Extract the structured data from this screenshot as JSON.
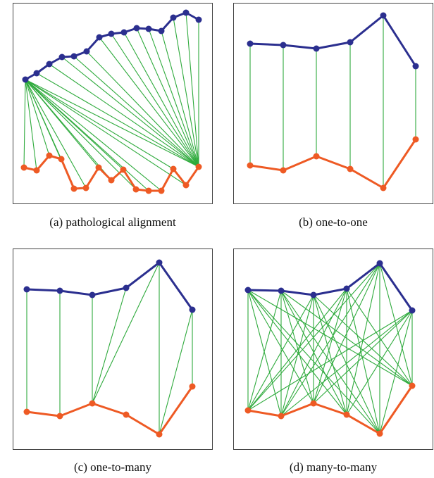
{
  "panels": [
    {
      "id": "a",
      "caption": "(a)  pathological alignment",
      "top": [
        [
          36,
          113
        ],
        [
          52,
          104
        ],
        [
          70,
          91
        ],
        [
          88,
          81
        ],
        [
          105,
          80
        ],
        [
          123,
          73
        ],
        [
          141,
          53
        ],
        [
          158,
          48
        ],
        [
          176,
          46
        ],
        [
          194,
          40
        ],
        [
          211,
          41
        ],
        [
          229,
          44
        ],
        [
          246,
          25
        ],
        [
          264,
          18
        ],
        [
          282,
          28
        ]
      ],
      "bottom": [
        [
          34,
          238
        ],
        [
          52,
          242
        ],
        [
          70,
          221
        ],
        [
          87,
          226
        ],
        [
          105,
          268
        ],
        [
          122,
          267
        ],
        [
          140,
          238
        ],
        [
          158,
          256
        ],
        [
          175,
          241
        ],
        [
          193,
          269
        ],
        [
          211,
          271
        ],
        [
          229,
          271
        ],
        [
          246,
          240
        ],
        [
          264,
          263
        ],
        [
          282,
          237
        ]
      ],
      "lines": [
        [
          0,
          0
        ],
        [
          0,
          1
        ],
        [
          0,
          2
        ],
        [
          0,
          3
        ],
        [
          0,
          4
        ],
        [
          0,
          5
        ],
        [
          0,
          6
        ],
        [
          0,
          7
        ],
        [
          0,
          8
        ],
        [
          0,
          9
        ],
        [
          0,
          10
        ],
        [
          0,
          11
        ],
        [
          0,
          12
        ],
        [
          0,
          13
        ],
        [
          0,
          14
        ],
        [
          1,
          14
        ],
        [
          2,
          14
        ],
        [
          3,
          14
        ],
        [
          4,
          14
        ],
        [
          5,
          14
        ],
        [
          6,
          14
        ],
        [
          7,
          14
        ],
        [
          8,
          14
        ],
        [
          9,
          14
        ],
        [
          10,
          14
        ],
        [
          11,
          14
        ],
        [
          12,
          14
        ],
        [
          13,
          14
        ],
        [
          14,
          14
        ]
      ]
    },
    {
      "id": "b",
      "caption": "(b)  one-to-one",
      "top": [
        [
          355,
          62
        ],
        [
          402,
          64
        ],
        [
          449,
          69
        ],
        [
          497,
          60
        ],
        [
          544,
          22
        ],
        [
          590,
          94
        ]
      ],
      "bottom": [
        [
          355,
          235
        ],
        [
          402,
          242
        ],
        [
          449,
          222
        ],
        [
          497,
          240
        ],
        [
          544,
          267
        ],
        [
          590,
          198
        ]
      ],
      "lines": [
        [
          0,
          0
        ],
        [
          1,
          1
        ],
        [
          2,
          2
        ],
        [
          3,
          3
        ],
        [
          4,
          4
        ],
        [
          5,
          5
        ]
      ]
    },
    {
      "id": "c",
      "caption": "(c)  one-to-many",
      "top": [
        [
          38,
          411
        ],
        [
          85,
          413
        ],
        [
          131,
          419
        ],
        [
          179,
          409
        ],
        [
          226,
          373
        ],
        [
          273,
          440
        ]
      ],
      "bottom": [
        [
          38,
          585
        ],
        [
          85,
          591
        ],
        [
          131,
          573
        ],
        [
          179,
          589
        ],
        [
          226,
          617
        ],
        [
          273,
          549
        ]
      ],
      "lines": [
        [
          0,
          0
        ],
        [
          1,
          1
        ],
        [
          2,
          2
        ],
        [
          3,
          2
        ],
        [
          4,
          2
        ],
        [
          4,
          4
        ],
        [
          5,
          4
        ],
        [
          5,
          5
        ]
      ]
    },
    {
      "id": "d",
      "caption": "(d)  many-to-many",
      "top": [
        [
          352,
          412
        ],
        [
          399,
          413
        ],
        [
          445,
          419
        ],
        [
          492,
          410
        ],
        [
          539,
          374
        ],
        [
          585,
          441
        ]
      ],
      "bottom": [
        [
          352,
          583
        ],
        [
          399,
          591
        ],
        [
          445,
          573
        ],
        [
          492,
          589
        ],
        [
          539,
          616
        ],
        [
          585,
          548
        ]
      ],
      "lines": "all"
    }
  ]
}
